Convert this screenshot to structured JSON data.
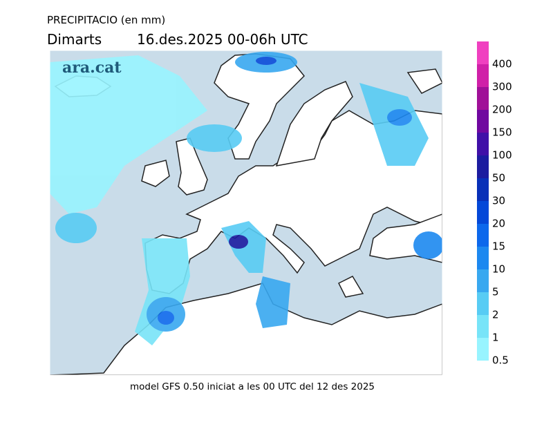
{
  "header": {
    "title": "PRECIPITACIO (en mm)",
    "day": "Dimarts",
    "period": "16.des.2025 00-06h UTC"
  },
  "logo": "ara.cat",
  "footer": "model GFS 0.50 iniciat a les 00 UTC del 12 des 2025",
  "legend": {
    "levels": [
      {
        "value": 0.5,
        "color": "#98f4ff"
      },
      {
        "value": 1,
        "color": "#78e4f8"
      },
      {
        "value": 2,
        "color": "#58ccf4"
      },
      {
        "value": 5,
        "color": "#38a8f0"
      },
      {
        "value": 10,
        "color": "#1c88f0"
      },
      {
        "value": 15,
        "color": "#0c68ec"
      },
      {
        "value": 20,
        "color": "#0448d8"
      },
      {
        "value": 30,
        "color": "#0830b8"
      },
      {
        "value": 50,
        "color": "#1c1ca0"
      },
      {
        "value": 100,
        "color": "#4010a8"
      },
      {
        "value": 150,
        "color": "#7008a0"
      },
      {
        "value": 200,
        "color": "#a01098"
      },
      {
        "value": 300,
        "color": "#d020a8"
      },
      {
        "value": 400,
        "color": "#f040c0"
      }
    ]
  }
}
